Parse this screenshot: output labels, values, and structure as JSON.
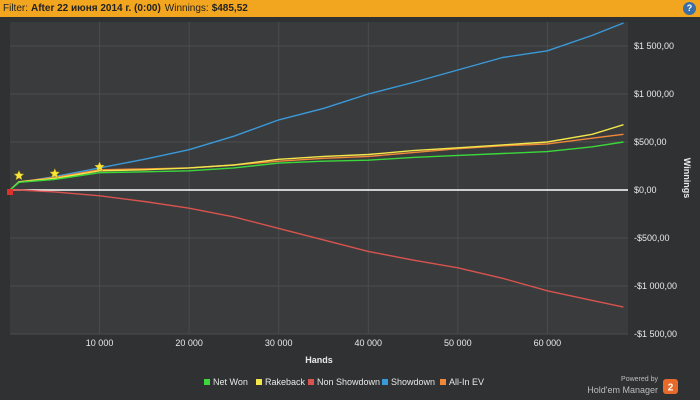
{
  "filter": {
    "label": "Filter:",
    "value": "After 22 июня 2014 г. (0:00)",
    "winnings_label": "Winnings:",
    "winnings_value": "$485,52"
  },
  "help_icon": "?",
  "branding": {
    "powered_by": "Powered by",
    "product": "Hold'em Manager",
    "logo_number": "2"
  },
  "chart_data": {
    "type": "line",
    "xlabel": "Hands",
    "ylabel": "Winnings",
    "xlim": [
      0,
      69000
    ],
    "ylim": [
      -1500,
      1750
    ],
    "x_ticks": [
      {
        "value": 10000,
        "label": "10 000"
      },
      {
        "value": 20000,
        "label": "20 000"
      },
      {
        "value": 30000,
        "label": "30 000"
      },
      {
        "value": 40000,
        "label": "40 000"
      },
      {
        "value": 50000,
        "label": "50 000"
      },
      {
        "value": 60000,
        "label": "60 000"
      }
    ],
    "y_ticks": [
      {
        "value": 1500,
        "label": "$1 500,00"
      },
      {
        "value": 1000,
        "label": "$1 000,00"
      },
      {
        "value": 500,
        "label": "$500,00"
      },
      {
        "value": 0,
        "label": "$0,00"
      },
      {
        "value": -500,
        "label": "-$500,00"
      },
      {
        "value": -1000,
        "label": "-$1 000,00"
      },
      {
        "value": -1500,
        "label": "-$1 500,00"
      }
    ],
    "grid": true,
    "legend_position": "bottom",
    "series": [
      {
        "name": "Net Won",
        "color": "#3bd83b",
        "x": [
          0,
          1000,
          5000,
          10000,
          15000,
          20000,
          25000,
          30000,
          35000,
          40000,
          45000,
          50000,
          55000,
          60000,
          65000,
          68500
        ],
        "y": [
          0,
          80,
          110,
          180,
          190,
          200,
          230,
          280,
          300,
          310,
          340,
          360,
          380,
          400,
          450,
          500
        ]
      },
      {
        "name": "Rakeback",
        "color": "#f2e64a",
        "x": [
          0,
          1000,
          5000,
          10000,
          15000,
          20000,
          25000,
          30000,
          35000,
          40000,
          45000,
          50000,
          55000,
          60000,
          65000,
          68500
        ],
        "y": [
          0,
          85,
          120,
          200,
          210,
          230,
          260,
          320,
          350,
          370,
          410,
          440,
          470,
          500,
          580,
          680
        ]
      },
      {
        "name": "Non Showdown",
        "color": "#d9534f",
        "x": [
          0,
          1000,
          5000,
          10000,
          15000,
          20000,
          25000,
          30000,
          35000,
          40000,
          45000,
          50000,
          55000,
          60000,
          65000,
          68500
        ],
        "y": [
          0,
          0,
          -20,
          -60,
          -120,
          -190,
          -280,
          -400,
          -520,
          -640,
          -730,
          -810,
          -920,
          -1050,
          -1150,
          -1220
        ]
      },
      {
        "name": "Showdown",
        "color": "#3a9ad9",
        "x": [
          0,
          1000,
          5000,
          10000,
          15000,
          20000,
          25000,
          30000,
          35000,
          40000,
          45000,
          50000,
          55000,
          60000,
          65000,
          68500
        ],
        "y": [
          0,
          80,
          140,
          230,
          320,
          420,
          560,
          730,
          850,
          1000,
          1120,
          1250,
          1380,
          1450,
          1610,
          1740
        ]
      },
      {
        "name": "All-In EV",
        "color": "#f0883a",
        "x": [
          0,
          1000,
          5000,
          10000,
          15000,
          20000,
          25000,
          30000,
          35000,
          40000,
          45000,
          50000,
          55000,
          60000,
          65000,
          68500
        ],
        "y": [
          0,
          85,
          130,
          210,
          220,
          230,
          260,
          300,
          330,
          350,
          390,
          430,
          460,
          480,
          540,
          580
        ]
      }
    ],
    "markers": {
      "stars": [
        {
          "x": 1000,
          "y": 150
        },
        {
          "x": 5000,
          "y": 170
        },
        {
          "x": 10000,
          "y": 240
        }
      ],
      "start": {
        "x": 0,
        "y": 0
      }
    }
  }
}
